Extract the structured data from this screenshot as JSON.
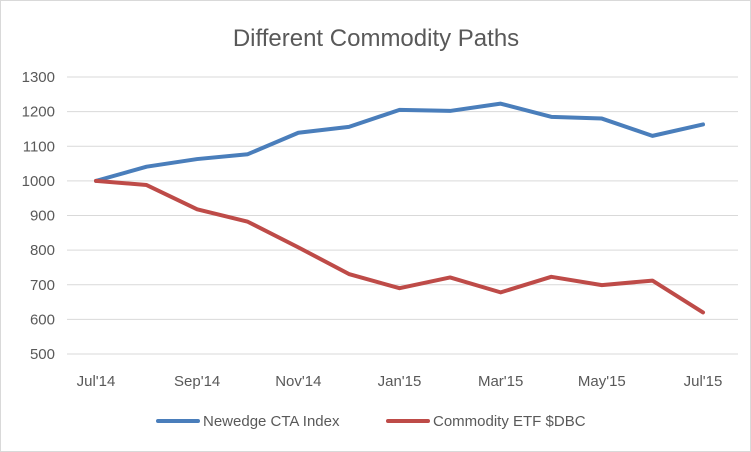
{
  "chart_data": {
    "type": "line",
    "title": "Different Commodity Paths",
    "xlabel": "",
    "ylabel": "",
    "x": [
      "Jul'14",
      "Aug'14",
      "Sep'14",
      "Oct'14",
      "Nov'14",
      "Dec'14",
      "Jan'15",
      "Feb'15",
      "Mar'15",
      "Apr'15",
      "May'15",
      "Jun'15",
      "Jul'15"
    ],
    "x_tick_labels": [
      "Jul'14",
      "Sep'14",
      "Nov'14",
      "Jan'15",
      "Mar'15",
      "May'15",
      "Jul'15"
    ],
    "y_ticks": [
      500,
      600,
      700,
      800,
      900,
      1000,
      1100,
      1200,
      1300
    ],
    "ylim": [
      500,
      1300
    ],
    "grid": true,
    "legend_position": "bottom",
    "series": [
      {
        "name": "Newedge CTA Index",
        "color": "#4a7ebb",
        "values": [
          1000,
          1041,
          1063,
          1077,
          1139,
          1156,
          1205,
          1202,
          1223,
          1185,
          1180,
          1130,
          1163
        ]
      },
      {
        "name": "Commodity ETF $DBC",
        "color": "#be4b48",
        "values": [
          1000,
          988,
          918,
          882,
          808,
          731,
          690,
          721,
          678,
          723,
          699,
          712,
          620
        ]
      }
    ]
  }
}
